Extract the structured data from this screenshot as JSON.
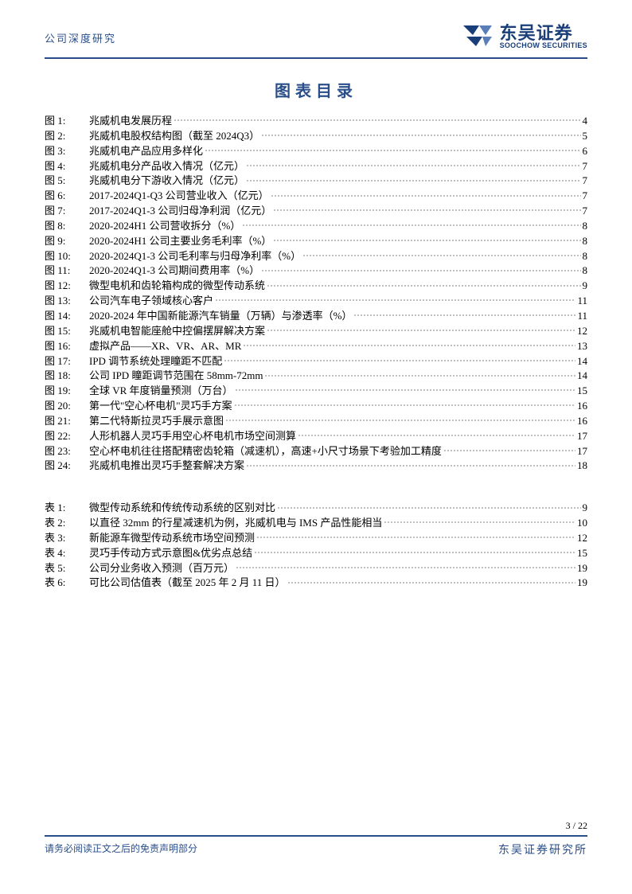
{
  "header": {
    "left_title": "公司深度研究",
    "company_cn": "东吴证券",
    "company_en": "SOOCHOW SECURITIES"
  },
  "main_title": "图表目录",
  "figures": [
    {
      "label": "图 1:",
      "title": "兆威机电发展历程",
      "page": "4"
    },
    {
      "label": "图 2:",
      "title": "兆威机电股权结构图（截至 2024Q3）",
      "page": "5"
    },
    {
      "label": "图 3:",
      "title": "兆威机电产品应用多样化",
      "page": "6"
    },
    {
      "label": "图 4:",
      "title": "兆威机电分产品收入情况（亿元）",
      "page": "7"
    },
    {
      "label": "图 5:",
      "title": "兆威机电分下游收入情况（亿元）",
      "page": "7"
    },
    {
      "label": "图 6:",
      "title": "2017-2024Q1-Q3 公司营业收入（亿元）",
      "page": "7"
    },
    {
      "label": "图 7:",
      "title": "2017-2024Q1-3 公司归母净利润（亿元）",
      "page": "7"
    },
    {
      "label": "图 8:",
      "title": "2020-2024H1 公司营收拆分（%）",
      "page": "8"
    },
    {
      "label": "图 9:",
      "title": "2020-2024H1 公司主要业务毛利率（%）",
      "page": "8"
    },
    {
      "label": "图 10:",
      "title": "2020-2024Q1-3 公司毛利率与归母净利率（%）",
      "page": "8"
    },
    {
      "label": "图 11:",
      "title": "2020-2024Q1-3 公司期间费用率（%）",
      "page": "8"
    },
    {
      "label": "图 12:",
      "title": "微型电机和齿轮箱构成的微型传动系统",
      "page": "9"
    },
    {
      "label": "图 13:",
      "title": "公司汽车电子领域核心客户",
      "page": "11"
    },
    {
      "label": "图 14:",
      "title": "2020-2024 年中国新能源汽车销量（万辆）与渗透率（%）",
      "page": "11"
    },
    {
      "label": "图 15:",
      "title": "兆威机电智能座舱中控偏摆屏解决方案",
      "page": "12"
    },
    {
      "label": "图 16:",
      "title": "虚拟产品——XR、VR、AR、MR",
      "page": "13"
    },
    {
      "label": "图 17:",
      "title": "IPD 调节系统处理瞳距不匹配",
      "page": "14"
    },
    {
      "label": "图 18:",
      "title": "公司 IPD 瞳距调节范围在 58mm-72mm",
      "page": "14"
    },
    {
      "label": "图 19:",
      "title": "全球 VR 年度销量预测（万台）",
      "page": "15"
    },
    {
      "label": "图 20:",
      "title": "第一代\"空心杯电机\"灵巧手方案",
      "page": "16"
    },
    {
      "label": "图 21:",
      "title": "第二代特斯拉灵巧手展示意图",
      "page": "16"
    },
    {
      "label": "图 22:",
      "title": "人形机器人灵巧手用空心杯电机市场空间测算",
      "page": "17"
    },
    {
      "label": "图 23:",
      "title": "空心杯电机往往搭配精密齿轮箱（减速机），高速+小尺寸场景下考验加工精度",
      "page": "17"
    },
    {
      "label": "图 24:",
      "title": "兆威机电推出灵巧手整套解决方案",
      "page": "18"
    }
  ],
  "tables": [
    {
      "label": "表 1:",
      "title": "微型传动系统和传统传动系统的区别对比",
      "page": "9"
    },
    {
      "label": "表 2:",
      "title": "以直径 32mm 的行星减速机为例，兆威机电与 IMS 产品性能相当",
      "page": "10"
    },
    {
      "label": "表 3:",
      "title": "新能源车微型传动系统市场空间预测",
      "page": "12"
    },
    {
      "label": "表 4:",
      "title": "灵巧手传动方式示意图&优劣点总结",
      "page": "15"
    },
    {
      "label": "表 5:",
      "title": "公司分业务收入预测（百万元）",
      "page": "19"
    },
    {
      "label": "表 6:",
      "title": "可比公司估值表（截至 2025 年 2 月 11 日）",
      "page": "19"
    }
  ],
  "footer": {
    "page_current": "3",
    "page_sep": " / ",
    "page_total": "22",
    "disclaimer": "请务必阅读正文之后的免责声明部分",
    "org": "东吴证券研究所"
  },
  "colors": {
    "brand_blue": "#2a4e8a",
    "logo_blue": "#1a3e78",
    "text": "#000000",
    "bg": "#ffffff"
  }
}
